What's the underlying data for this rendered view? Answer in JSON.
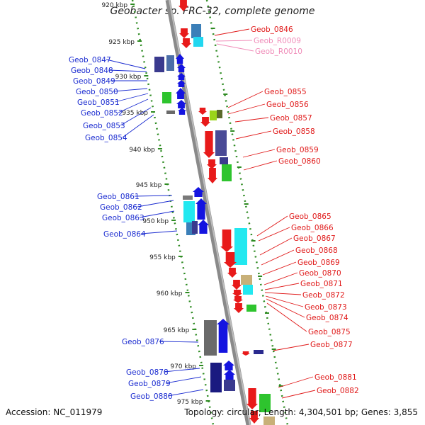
{
  "title": "Geobacter sp. FRC-32, complete genome",
  "accession": "Accession: NC_011979",
  "topology": "Topology: circular; Length: 4,304,501 bp; Genes: 3,855",
  "colors": {
    "backbone": "#8a8a8a",
    "tick": "#2e8b22",
    "left_label": "#1a2bd0",
    "right_label": "#e01818",
    "rna_label": "#f08bb8"
  },
  "kbp_ticks": [
    "920 kbp",
    "925 kbp",
    "930 kbp",
    "935 kbp",
    "940 kbp",
    "945 kbp",
    "950 kbp",
    "955 kbp",
    "960 kbp",
    "965 kbp",
    "970 kbp",
    "975 kbp"
  ],
  "left_genes": [
    "Geob_0847",
    "Geob_0848",
    "Geob_0849",
    "Geob_0850",
    "Geob_0851",
    "Geob_0852",
    "Geob_0853",
    "Geob_0854",
    "Geob_0861",
    "Geob_0862",
    "Geob_0863",
    "Geob_0864",
    "Geob_0876",
    "Geob_0878",
    "Geob_0879",
    "Geob_0880"
  ],
  "right_genes": [
    "Geob_0846",
    "Geob_0855",
    "Geob_0856",
    "Geob_0857",
    "Geob_0858",
    "Geob_0859",
    "Geob_0860",
    "Geob_0865",
    "Geob_0866",
    "Geob_0867",
    "Geob_0868",
    "Geob_0869",
    "Geob_0870",
    "Geob_0871",
    "Geob_0872",
    "Geob_0873",
    "Geob_0874",
    "Geob_0875",
    "Geob_0877",
    "Geob_0881",
    "Geob_0882"
  ],
  "rna_genes": [
    "Geob_R0009",
    "Geob_R0010"
  ]
}
